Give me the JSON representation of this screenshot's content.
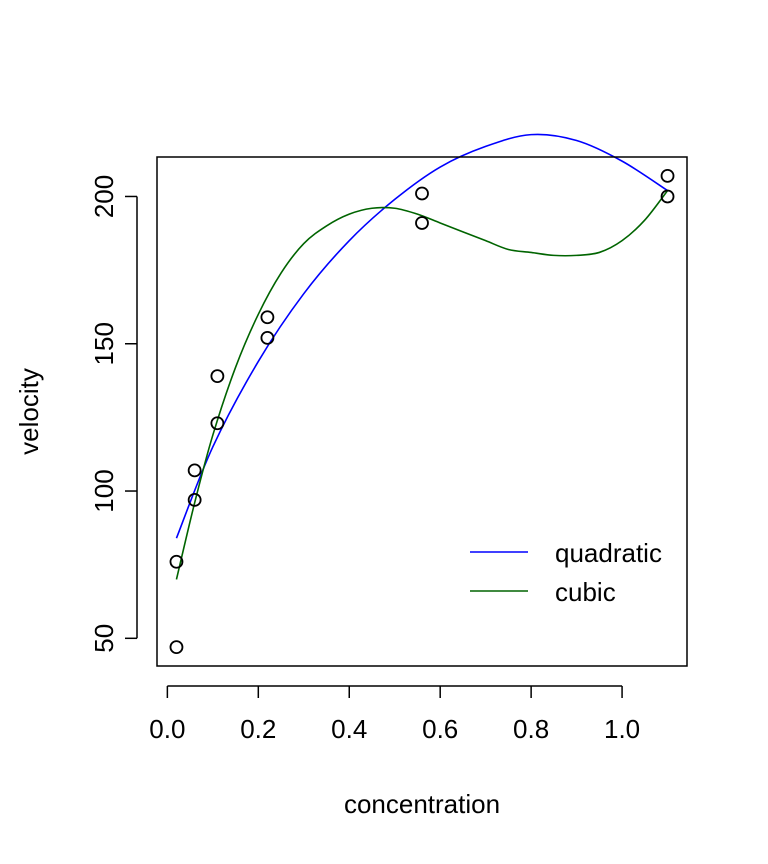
{
  "chart_data": {
    "type": "scatter",
    "title": "",
    "xlabel": "concentration",
    "ylabel": "velocity",
    "xlim": [
      -0.0228,
      1.1428
    ],
    "ylim": [
      40.6,
      213.4
    ],
    "x_ticks": [
      0.0,
      0.2,
      0.4,
      0.6,
      0.8,
      1.0
    ],
    "x_tick_labels": [
      "0.0",
      "0.2",
      "0.4",
      "0.6",
      "0.8",
      "1.0"
    ],
    "y_ticks": [
      50,
      100,
      150,
      200
    ],
    "y_tick_labels": [
      "50",
      "100",
      "150",
      "200"
    ],
    "grid": false,
    "points": {
      "x": [
        0.02,
        0.02,
        0.06,
        0.06,
        0.11,
        0.11,
        0.22,
        0.22,
        0.56,
        0.56,
        1.1,
        1.1
      ],
      "y": [
        76,
        47,
        97,
        107,
        123,
        139,
        159,
        152,
        191,
        201,
        207,
        200
      ]
    },
    "series": [
      {
        "name": "quadratic",
        "color": "#0000ff",
        "x": [
          0.02,
          0.1,
          0.2,
          0.3,
          0.4,
          0.5,
          0.6,
          0.7,
          0.8,
          0.9,
          1.0,
          1.1
        ],
        "y": [
          84,
          115,
          144,
          167,
          185,
          199,
          210,
          217,
          221,
          219,
          212,
          202
        ]
      },
      {
        "name": "cubic",
        "color": "#006400",
        "x": [
          0.02,
          0.06,
          0.1,
          0.15,
          0.2,
          0.25,
          0.3,
          0.35,
          0.4,
          0.45,
          0.5,
          0.55,
          0.6,
          0.65,
          0.7,
          0.75,
          0.8,
          0.85,
          0.9,
          0.95,
          1.0,
          1.05,
          1.1
        ],
        "y": [
          70,
          96,
          119,
          142,
          160,
          174,
          184,
          190,
          194,
          196,
          196,
          194,
          191,
          188,
          185,
          182,
          181,
          180,
          180,
          181,
          185,
          192,
          202
        ]
      }
    ],
    "legend": {
      "position": "bottom-right",
      "entries": [
        "quadratic",
        "cubic"
      ]
    }
  }
}
